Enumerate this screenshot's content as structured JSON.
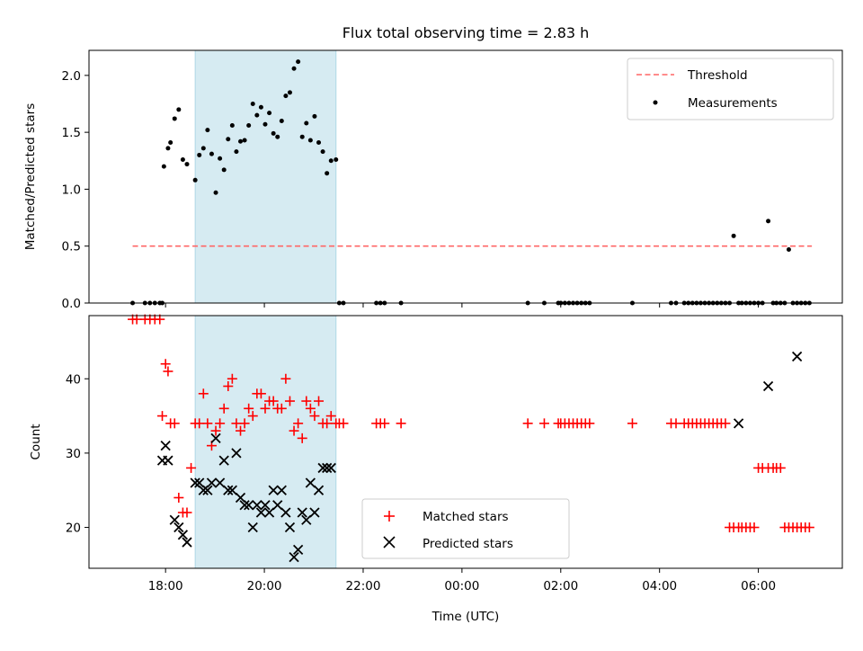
{
  "chart_data": {
    "title": "Flux total observing time = 2.83 h",
    "xlabel": "Time (UTC)",
    "x_ticks": [
      "18:00",
      "20:00",
      "22:00",
      "00:00",
      "02:00",
      "04:00",
      "06:00"
    ],
    "shaded_interval": [
      "18:36",
      "21:27"
    ],
    "colors": {
      "threshold": "#ff6666",
      "shade": "#add8e6",
      "matched": "#ff0000",
      "predicted": "#000000"
    },
    "top": {
      "type": "scatter",
      "ylabel": "Matched/Predicted stars",
      "ylim": [
        0,
        2.22
      ],
      "y_ticks": [
        "0.0",
        "0.5",
        "1.0",
        "1.5",
        "2.0"
      ],
      "legend": {
        "threshold_label": "Threshold",
        "measurements_label": "Measurements",
        "placement": "upper right"
      },
      "threshold": {
        "value": 0.5,
        "x_start": "17:20",
        "x_end": "07:05"
      },
      "series": [
        {
          "name": "Measurements",
          "x": [
            "17:20",
            "17:35",
            "17:41",
            "17:47",
            "17:53",
            "17:56",
            "17:58",
            "18:03",
            "18:06",
            "18:11",
            "18:16",
            "18:21",
            "18:26",
            "18:36",
            "18:41",
            "18:46",
            "18:51",
            "18:56",
            "19:01",
            "19:06",
            "19:11",
            "19:16",
            "19:21",
            "19:26",
            "19:31",
            "19:36",
            "19:41",
            "19:46",
            "19:51",
            "19:56",
            "20:01",
            "20:06",
            "20:11",
            "20:16",
            "20:21",
            "20:26",
            "20:31",
            "20:36",
            "20:41",
            "20:46",
            "20:51",
            "20:56",
            "21:01",
            "21:06",
            "21:11",
            "21:16",
            "21:21",
            "21:27",
            "21:31",
            "21:36",
            "22:16",
            "22:21",
            "22:26",
            "22:46",
            "01:20",
            "01:40",
            "01:57",
            "02:00",
            "02:05",
            "02:10",
            "02:15",
            "02:20",
            "02:25",
            "02:30",
            "02:35",
            "03:27",
            "04:14",
            "04:20",
            "04:30",
            "04:35",
            "04:40",
            "04:45",
            "04:50",
            "04:55",
            "05:00",
            "05:05",
            "05:10",
            "05:15",
            "05:20",
            "05:25",
            "05:30",
            "05:36",
            "05:40",
            "05:45",
            "05:50",
            "05:55",
            "06:00",
            "06:05",
            "06:12",
            "06:18",
            "06:22",
            "06:27",
            "06:32",
            "06:37",
            "06:42",
            "06:47",
            "06:52",
            "06:57",
            "07:02"
          ],
          "y": [
            0,
            0,
            0,
            0,
            0,
            0,
            1.2,
            1.36,
            1.41,
            1.62,
            1.7,
            1.26,
            1.22,
            1.08,
            1.3,
            1.36,
            1.52,
            1.31,
            0.97,
            1.27,
            1.17,
            1.44,
            1.56,
            1.33,
            1.42,
            1.43,
            1.56,
            1.75,
            1.65,
            1.72,
            1.57,
            1.67,
            1.49,
            1.46,
            1.6,
            1.82,
            1.85,
            2.06,
            2.12,
            1.46,
            1.58,
            1.43,
            1.64,
            1.41,
            1.33,
            1.14,
            1.25,
            1.26,
            0,
            0,
            0,
            0,
            0,
            0,
            0,
            0,
            0,
            0,
            0,
            0,
            0,
            0,
            0,
            0,
            0,
            0,
            0,
            0,
            0,
            0,
            0,
            0,
            0,
            0,
            0,
            0,
            0,
            0,
            0,
            0,
            0.59,
            0,
            0,
            0,
            0,
            0,
            0,
            0,
            0.72,
            0,
            0,
            0,
            0,
            0.47,
            0,
            0,
            0,
            0,
            0
          ]
        }
      ]
    },
    "bottom": {
      "type": "scatter",
      "ylabel": "Count",
      "ylim": [
        14.5,
        48.5
      ],
      "y_ticks": [
        "20",
        "30",
        "40"
      ],
      "legend": {
        "matched_label": "Matched stars",
        "predicted_label": "Predicted stars",
        "placement": "lower center"
      },
      "series": [
        {
          "name": "Matched stars",
          "x": [
            "17:20",
            "17:25",
            "17:35",
            "17:41",
            "17:47",
            "17:53",
            "17:56",
            "18:00",
            "18:03",
            "18:06",
            "18:11",
            "18:16",
            "18:21",
            "18:26",
            "18:31",
            "18:36",
            "18:41",
            "18:46",
            "18:51",
            "18:56",
            "19:01",
            "19:06",
            "19:11",
            "19:16",
            "19:21",
            "19:26",
            "19:31",
            "19:36",
            "19:41",
            "19:46",
            "19:51",
            "19:56",
            "20:01",
            "20:06",
            "20:11",
            "20:16",
            "20:21",
            "20:26",
            "20:31",
            "20:36",
            "20:41",
            "20:46",
            "20:51",
            "20:56",
            "21:01",
            "21:06",
            "21:11",
            "21:16",
            "21:21",
            "21:27",
            "21:31",
            "21:36",
            "22:16",
            "22:21",
            "22:26",
            "22:46",
            "01:20",
            "01:40",
            "01:57",
            "02:00",
            "02:05",
            "02:10",
            "02:15",
            "02:20",
            "02:25",
            "02:30",
            "02:35",
            "03:27",
            "04:14",
            "04:20",
            "04:30",
            "04:35",
            "04:40",
            "04:45",
            "04:50",
            "04:55",
            "05:00",
            "05:05",
            "05:10",
            "05:15",
            "05:20",
            "05:25",
            "05:30",
            "05:36",
            "05:40",
            "05:45",
            "05:50",
            "05:55",
            "06:00",
            "06:05",
            "06:12",
            "06:18",
            "06:22",
            "06:27",
            "06:32",
            "06:37",
            "06:42",
            "06:47",
            "06:52",
            "06:57",
            "07:02"
          ],
          "y": [
            48,
            48,
            48,
            48,
            48,
            48,
            35,
            42,
            41,
            34,
            34,
            24,
            22,
            22,
            28,
            34,
            34,
            38,
            34,
            31,
            33,
            34,
            36,
            39,
            40,
            34,
            33,
            34,
            36,
            35,
            38,
            38,
            36,
            37,
            37,
            36,
            36,
            40,
            37,
            33,
            34,
            32,
            37,
            36,
            35,
            37,
            34,
            34,
            35,
            34,
            34,
            34,
            34,
            34,
            34,
            34,
            34,
            34,
            34,
            34,
            34,
            34,
            34,
            34,
            34,
            34,
            34,
            34,
            34,
            34,
            34,
            34,
            34,
            34,
            34,
            34,
            34,
            34,
            34,
            34,
            34,
            20,
            20,
            20,
            20,
            20,
            20,
            20,
            28,
            28,
            28,
            28,
            28,
            28,
            20,
            20,
            20,
            20,
            20,
            20,
            20
          ]
        },
        {
          "name": "Predicted stars",
          "x": [
            "17:56",
            "18:00",
            "18:03",
            "18:11",
            "18:16",
            "18:21",
            "18:26",
            "18:36",
            "18:41",
            "18:46",
            "18:51",
            "18:56",
            "19:01",
            "19:06",
            "19:11",
            "19:16",
            "19:21",
            "19:26",
            "19:31",
            "19:36",
            "19:41",
            "19:46",
            "19:51",
            "19:56",
            "20:01",
            "20:06",
            "20:11",
            "20:16",
            "20:21",
            "20:26",
            "20:31",
            "20:36",
            "20:41",
            "20:46",
            "20:51",
            "20:56",
            "21:01",
            "21:06",
            "21:11",
            "21:16",
            "21:21",
            "05:36",
            "06:12",
            "06:47"
          ],
          "y": [
            29,
            31,
            29,
            21,
            20,
            19,
            18,
            26,
            26,
            25,
            25,
            26,
            32,
            26,
            29,
            25,
            25,
            30,
            24,
            23,
            23,
            20,
            23,
            22,
            23,
            22,
            25,
            23,
            25,
            22,
            20,
            16,
            17,
            22,
            21,
            26,
            22,
            25,
            28,
            28,
            28,
            34,
            39,
            43
          ]
        }
      ]
    }
  }
}
